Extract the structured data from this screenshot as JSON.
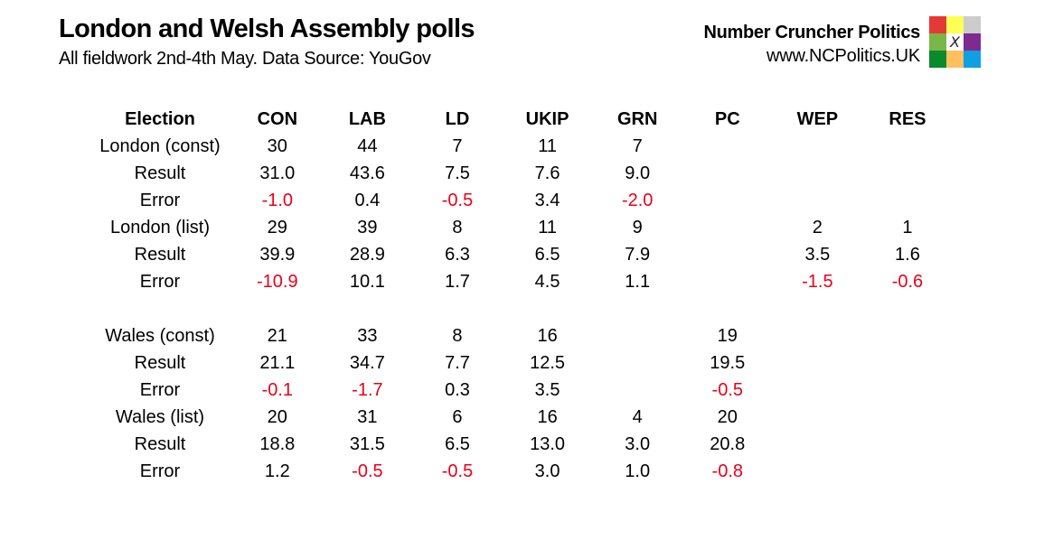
{
  "header": {
    "title": "London and Welsh Assembly polls",
    "subtitle": "All fieldwork 2nd-4th May. Data Source: YouGov"
  },
  "brand": {
    "name": "Number Cruncher Politics",
    "url": "www.NCPolitics.UK",
    "logo_icon": "ballot-grid-icon",
    "logo_mark": "X",
    "logo_colors": [
      "#e53935",
      "#ffff55",
      "#cccccc",
      "#7ab648",
      "#ffffff",
      "#7f2a8e",
      "#0a8a2a",
      "#ffc060",
      "#0ea0e0"
    ]
  },
  "colors": {
    "negative": "#e8001c",
    "text": "#000000"
  },
  "table": {
    "columns": [
      "Election",
      "CON",
      "LAB",
      "LD",
      "UKIP",
      "GRN",
      "PC",
      "WEP",
      "RES"
    ],
    "rows": [
      {
        "label": "London (const)",
        "type": "poll",
        "values": [
          "30",
          "44",
          "7",
          "11",
          "7",
          "",
          "",
          ""
        ]
      },
      {
        "label": "Result",
        "type": "result",
        "values": [
          "31.0",
          "43.6",
          "7.5",
          "7.6",
          "9.0",
          "",
          "",
          ""
        ]
      },
      {
        "label": "Error",
        "type": "error",
        "values": [
          "-1.0",
          "0.4",
          "-0.5",
          "3.4",
          "-2.0",
          "",
          "",
          ""
        ]
      },
      {
        "label": "London (list)",
        "type": "poll",
        "values": [
          "29",
          "39",
          "8",
          "11",
          "9",
          "",
          "2",
          "1"
        ]
      },
      {
        "label": "Result",
        "type": "result",
        "values": [
          "39.9",
          "28.9",
          "6.3",
          "6.5",
          "7.9",
          "",
          "3.5",
          "1.6"
        ]
      },
      {
        "label": "Error",
        "type": "error",
        "values": [
          "-10.9",
          "10.1",
          "1.7",
          "4.5",
          "1.1",
          "",
          "-1.5",
          "-0.6"
        ]
      },
      {
        "label": "",
        "type": "spacer",
        "values": [
          "",
          "",
          "",
          "",
          "",
          "",
          "",
          ""
        ]
      },
      {
        "label": "Wales (const)",
        "type": "poll",
        "values": [
          "21",
          "33",
          "8",
          "16",
          "",
          "19",
          "",
          ""
        ]
      },
      {
        "label": "Result",
        "type": "result",
        "values": [
          "21.1",
          "34.7",
          "7.7",
          "12.5",
          "",
          "19.5",
          "",
          ""
        ]
      },
      {
        "label": "Error",
        "type": "error",
        "values": [
          "-0.1",
          "-1.7",
          "0.3",
          "3.5",
          "",
          "-0.5",
          "",
          ""
        ]
      },
      {
        "label": "Wales (list)",
        "type": "poll",
        "values": [
          "20",
          "31",
          "6",
          "16",
          "4",
          "20",
          "",
          ""
        ]
      },
      {
        "label": "Result",
        "type": "result",
        "values": [
          "18.8",
          "31.5",
          "6.5",
          "13.0",
          "3.0",
          "20.8",
          "",
          ""
        ]
      },
      {
        "label": "Error",
        "type": "error",
        "values": [
          "1.2",
          "-0.5",
          "-0.5",
          "3.0",
          "1.0",
          "-0.8",
          "",
          ""
        ]
      }
    ]
  }
}
